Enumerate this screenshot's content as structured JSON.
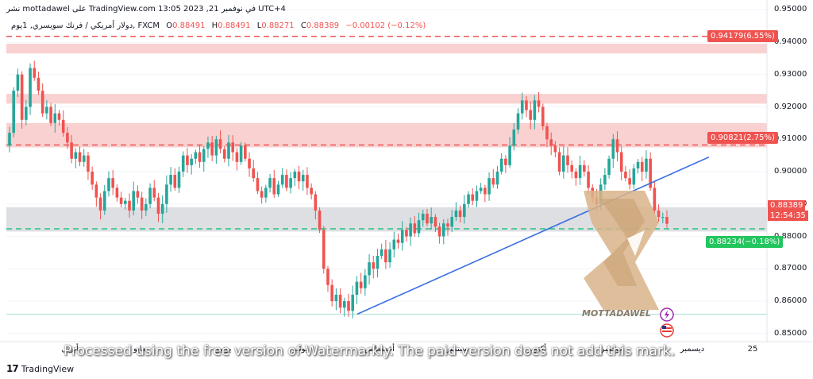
{
  "header": {
    "author_line": "نشر mottadawel على TradingView.com 13:05 2023 ,21 في نوفمبر UTC+4",
    "symbol": "دولار أمريكي / فرنك سويسري, 1يوم, FXCM",
    "open_label": "O",
    "open": "0.88491",
    "high_label": "H",
    "high": "0.88491",
    "low_label": "L",
    "low": "0.88271",
    "close_label": "C",
    "close": "0.88389",
    "change": "−0.00102 (−0.12%)"
  },
  "footer": {
    "brand": "TradingView",
    "brand_mark": "17",
    "watermark": "Processed using the free version of Watermarkly. The paid version does not add this mark."
  },
  "overlay": {
    "logo_text": "MOTTADAWEL"
  },
  "price_tags": {
    "top": "0.94179(6.55%)",
    "middle": "0.90821(2.75%)",
    "bottom": "0.88234(−0.18%)",
    "current": "0.88389",
    "countdown": "12:54:35"
  },
  "colors": {
    "up": "#26a69a",
    "down": "#ef5350",
    "resistance_zone": "#f8c9c9",
    "neutral_zone": "#d8d9de",
    "trendline": "#3a6fe3",
    "support_line": "#26c281",
    "logo_tan": "#d9b48a"
  },
  "chart_data": {
    "type": "candlestick",
    "title": "",
    "y_ticks": [
      "0.95000",
      "0.94000",
      "0.93000",
      "0.92000",
      "0.91000",
      "0.90000",
      "0.89000",
      "0.88000",
      "0.87000",
      "0.86000",
      "0.85000"
    ],
    "x_ticks": [
      "أبريل",
      "مايو",
      "يونيو",
      "يوليو",
      "أغسطس",
      "سبتمبر",
      "أكتوبر",
      "نوفمبر",
      "ديسمبر",
      "25"
    ],
    "ylim": [
      0.8475,
      0.953
    ],
    "zones": [
      {
        "from": 0.9365,
        "to": 0.9395,
        "color": "resistance"
      },
      {
        "from": 0.921,
        "to": 0.924,
        "color": "resistance"
      },
      {
        "from": 0.9075,
        "to": 0.915,
        "color": "resistance"
      },
      {
        "from": 0.8815,
        "to": 0.889,
        "color": "neutral"
      }
    ],
    "levels": [
      {
        "price": 0.94179,
        "style": "dashed-red"
      },
      {
        "price": 0.90821,
        "style": "dashed-red"
      },
      {
        "price": 0.88234,
        "style": "dashed-green"
      },
      {
        "price": 0.856,
        "style": "solid-teal"
      }
    ],
    "trendline": {
      "from": [
        450,
        0.856
      ],
      "to": [
        893,
        0.9045
      ]
    },
    "closes": [
      0.912,
      0.925,
      0.93,
      0.916,
      0.92,
      0.932,
      0.929,
      0.925,
      0.918,
      0.92,
      0.915,
      0.918,
      0.916,
      0.912,
      0.909,
      0.904,
      0.906,
      0.903,
      0.905,
      0.9,
      0.896,
      0.892,
      0.888,
      0.894,
      0.898,
      0.895,
      0.892,
      0.89,
      0.891,
      0.888,
      0.894,
      0.892,
      0.888,
      0.89,
      0.895,
      0.892,
      0.887,
      0.89,
      0.896,
      0.899,
      0.895,
      0.9,
      0.905,
      0.902,
      0.904,
      0.906,
      0.903,
      0.907,
      0.909,
      0.905,
      0.91,
      0.907,
      0.904,
      0.909,
      0.906,
      0.903,
      0.908,
      0.904,
      0.901,
      0.898,
      0.894,
      0.892,
      0.895,
      0.898,
      0.893,
      0.896,
      0.899,
      0.895,
      0.898,
      0.9,
      0.897,
      0.899,
      0.895,
      0.893,
      0.888,
      0.882,
      0.87,
      0.865,
      0.86,
      0.862,
      0.858,
      0.86,
      0.857,
      0.862,
      0.866,
      0.864,
      0.868,
      0.872,
      0.87,
      0.874,
      0.876,
      0.872,
      0.876,
      0.879,
      0.878,
      0.882,
      0.88,
      0.884,
      0.881,
      0.885,
      0.887,
      0.884,
      0.886,
      0.883,
      0.88,
      0.884,
      0.883,
      0.886,
      0.888,
      0.886,
      0.89,
      0.893,
      0.891,
      0.894,
      0.895,
      0.893,
      0.898,
      0.896,
      0.9,
      0.904,
      0.902,
      0.908,
      0.913,
      0.918,
      0.922,
      0.919,
      0.916,
      0.922,
      0.92,
      0.914,
      0.91,
      0.908,
      0.906,
      0.9,
      0.905,
      0.902,
      0.9,
      0.898,
      0.902,
      0.9,
      0.895,
      0.892,
      0.89,
      0.896,
      0.899,
      0.904,
      0.91,
      0.906,
      0.9,
      0.898,
      0.896,
      0.901,
      0.903,
      0.9,
      0.904,
      0.895,
      0.888,
      0.886,
      0.886,
      0.8839
    ]
  }
}
